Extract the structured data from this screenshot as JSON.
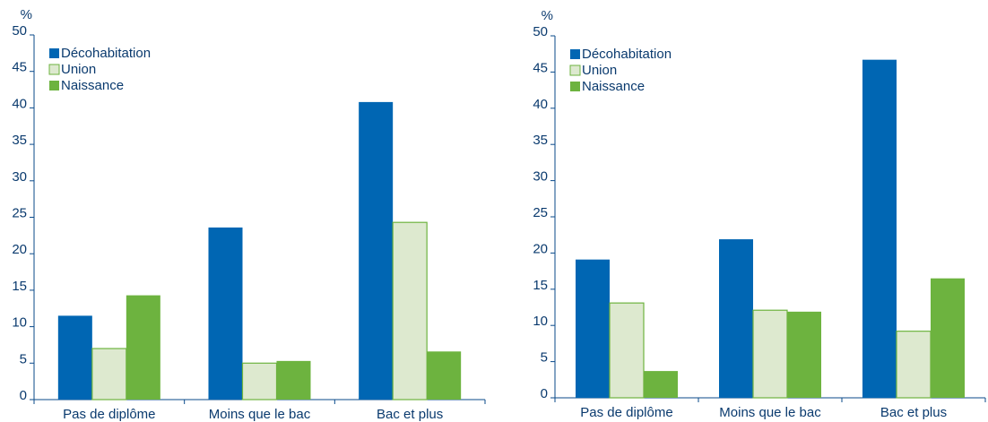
{
  "chart_data": [
    {
      "type": "bar",
      "y_label": "%",
      "categories": [
        "Pas de diplôme",
        "Moins que le bac",
        "Bac et plus"
      ],
      "series": [
        {
          "name": "Décohabitation",
          "color": "#0066b3",
          "values": [
            11.5,
            23.6,
            40.8
          ]
        },
        {
          "name": "Union",
          "color": "#dde9cf",
          "edge_color": "#6db33f",
          "values": [
            7.0,
            5.0,
            24.3
          ]
        },
        {
          "name": "Naissance",
          "color": "#6db33f",
          "values": [
            14.3,
            5.3,
            6.6
          ]
        }
      ],
      "ylim": [
        0,
        50
      ],
      "yticks": [
        0,
        5,
        10,
        15,
        20,
        25,
        30,
        35,
        40,
        45,
        50
      ],
      "grid": false,
      "legend": "upper left"
    },
    {
      "type": "bar",
      "y_label": "%",
      "categories": [
        "Pas de diplôme",
        "Moins que le bac",
        "Bac et plus"
      ],
      "series": [
        {
          "name": "Décohabitation",
          "color": "#0066b3",
          "values": [
            19.1,
            21.9,
            46.7
          ]
        },
        {
          "name": "Union",
          "color": "#dde9cf",
          "edge_color": "#6db33f",
          "values": [
            13.1,
            12.1,
            9.2
          ]
        },
        {
          "name": "Naissance",
          "color": "#6db33f",
          "values": [
            3.7,
            11.9,
            16.5
          ]
        }
      ],
      "ylim": [
        0,
        50
      ],
      "yticks": [
        0,
        5,
        10,
        15,
        20,
        25,
        30,
        35,
        40,
        45,
        50
      ],
      "grid": false,
      "legend": "upper left"
    }
  ]
}
